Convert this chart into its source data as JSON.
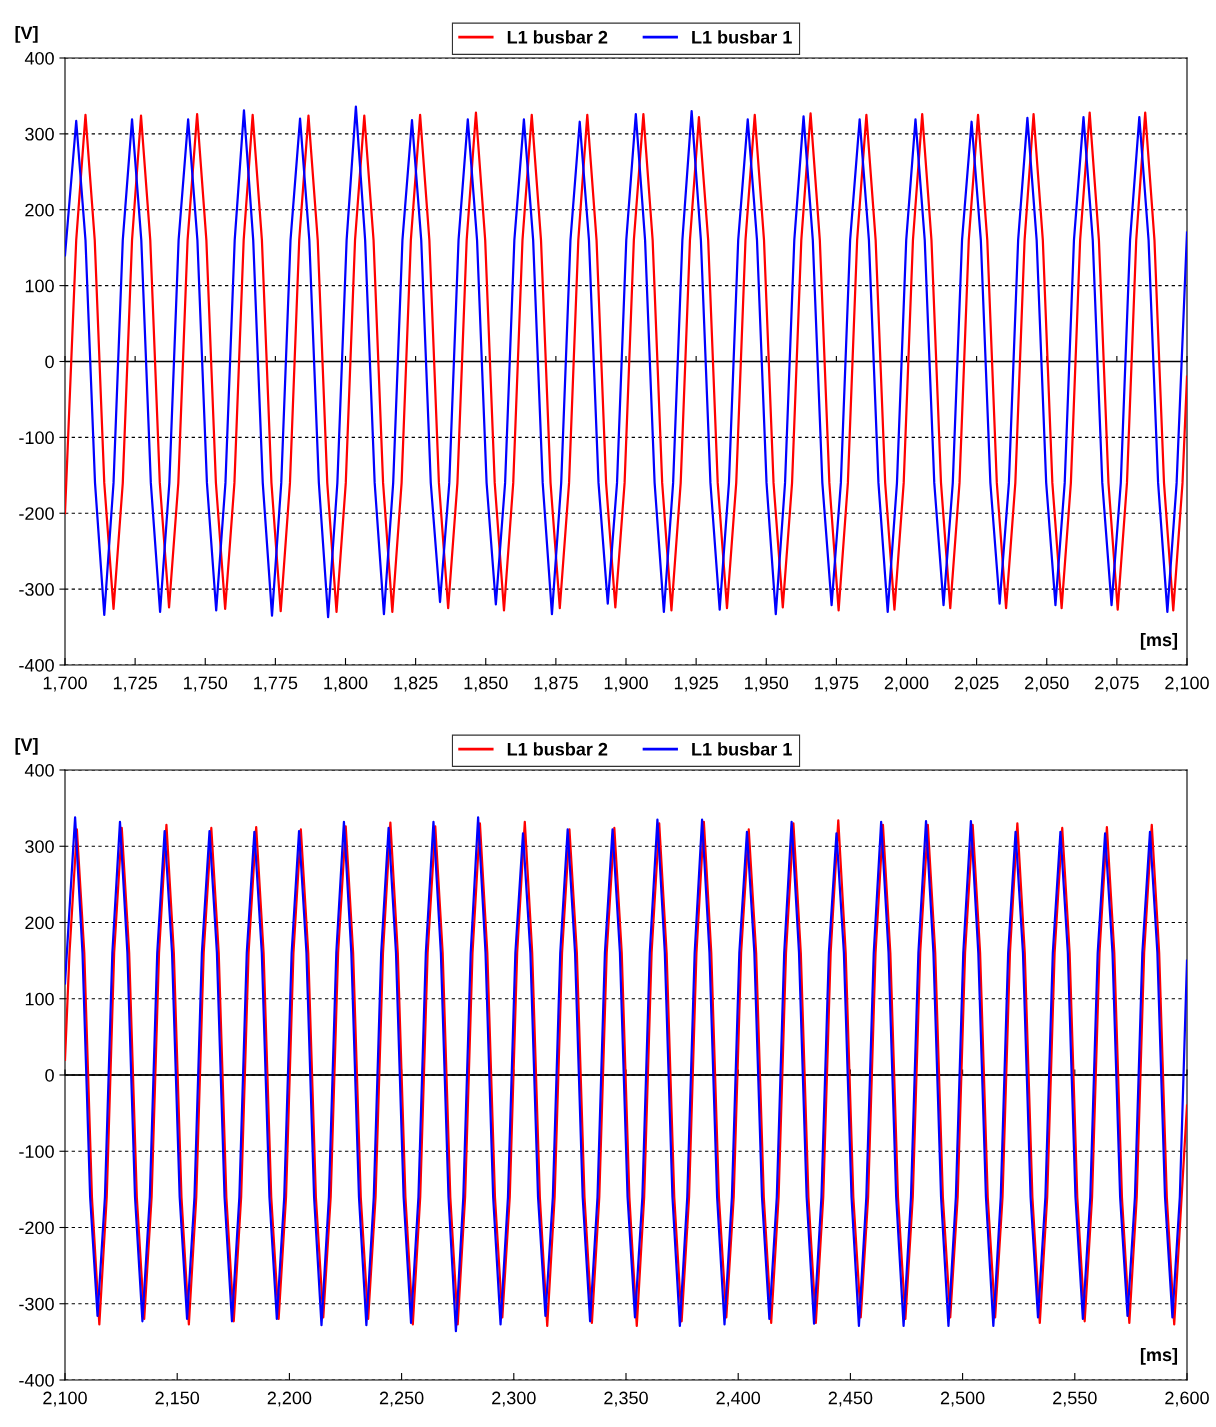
{
  "chart_data": [
    {
      "type": "line",
      "xlabel": "[ms]",
      "ylabel": "[V]",
      "legend": "top",
      "grid": "y",
      "line_style": "solid",
      "marker": "none",
      "xlim": [
        1700,
        2100
      ],
      "ylim": [
        -400,
        400
      ],
      "xticks": [
        {
          "value": 1700,
          "label": "1,700"
        },
        {
          "value": 1725,
          "label": "1,725"
        },
        {
          "value": 1750,
          "label": "1,750"
        },
        {
          "value": 1775,
          "label": "1,775"
        },
        {
          "value": 1800,
          "label": "1,800"
        },
        {
          "value": 1825,
          "label": "1,825"
        },
        {
          "value": 1850,
          "label": "1,850"
        },
        {
          "value": 1875,
          "label": "1,875"
        },
        {
          "value": 1900,
          "label": "1,900"
        },
        {
          "value": 1925,
          "label": "1,925"
        },
        {
          "value": 1950,
          "label": "1,950"
        },
        {
          "value": 1975,
          "label": "1,975"
        },
        {
          "value": 2000,
          "label": "2,000"
        },
        {
          "value": 2025,
          "label": "2,025"
        },
        {
          "value": 2050,
          "label": "2,050"
        },
        {
          "value": 2075,
          "label": "2,075"
        },
        {
          "value": 2100,
          "label": "2,100"
        }
      ],
      "yticks": [
        -400,
        -300,
        -200,
        -100,
        0,
        100,
        200,
        300,
        400
      ],
      "ref_lines": [
        {
          "axis": "y",
          "value": 0,
          "color": "#000000",
          "line_style": "solid"
        }
      ],
      "series": [
        {
          "name": "L1 busbar 2",
          "color": "#ff0000",
          "x": [
            1700,
            1704.0,
            1707.3,
            1710.6,
            1714.0,
            1717.3,
            1720.6,
            1723.9,
            1727.1,
            1730.4,
            1733.8,
            1737.1,
            1740.4,
            1743.7,
            1747.1,
            1750.4,
            1753.8,
            1757.1,
            1760.4,
            1763.7,
            1766.9,
            1770.2,
            1773.6,
            1776.9,
            1780.2,
            1783.5,
            1786.8,
            1790.1,
            1793.5,
            1796.8,
            1800.1,
            1803.4,
            1806.7,
            1810.0,
            1813.4,
            1816.7,
            1820.0,
            1823.3,
            1826.6,
            1829.9,
            1833.3,
            1836.6,
            1839.9,
            1843.2,
            1846.5,
            1849.8,
            1853.2,
            1856.5,
            1859.8,
            1863.1,
            1866.4,
            1869.7,
            1873.1,
            1876.4,
            1879.7,
            1883.0,
            1886.2,
            1889.5,
            1892.9,
            1896.2,
            1899.5,
            1902.8,
            1906.2,
            1909.5,
            1912.9,
            1916.2,
            1919.5,
            1922.8,
            1926.0,
            1929.3,
            1932.7,
            1936.0,
            1939.3,
            1942.6,
            1945.9,
            1949.2,
            1952.6,
            1955.9,
            1959.2,
            1962.5,
            1965.8,
            1969.1,
            1972.5,
            1975.8,
            1979.1,
            1982.4,
            1985.7,
            1989.0,
            1992.4,
            1995.7,
            1999.0,
            2002.3,
            2005.6,
            2008.9,
            2012.3,
            2015.6,
            2018.9,
            2022.2,
            2025.5,
            2028.8,
            2032.2,
            2035.5,
            2038.8,
            2042.1,
            2045.3,
            2048.6,
            2052.0,
            2055.3,
            2058.6,
            2061.9,
            2065.3,
            2068.6,
            2072.0,
            2075.3,
            2078.6,
            2081.9,
            2085.1,
            2088.4,
            2091.8,
            2095.1,
            2098.4,
            2100
          ],
          "values": [
            -200,
            160,
            325,
            160,
            -160,
            -326,
            -160,
            160,
            324,
            160,
            -160,
            -324,
            -160,
            160,
            326,
            160,
            -160,
            -326,
            -160,
            160,
            325,
            160,
            -160,
            -329,
            -160,
            160,
            324,
            160,
            -160,
            -330,
            -160,
            160,
            324,
            160,
            -160,
            -330,
            -160,
            160,
            325,
            160,
            -160,
            -325,
            -160,
            160,
            328,
            160,
            -160,
            -328,
            -160,
            160,
            325,
            160,
            -160,
            -325,
            -160,
            160,
            325,
            160,
            -160,
            -324,
            -160,
            160,
            326,
            160,
            -160,
            -328,
            -160,
            160,
            322,
            160,
            -160,
            -325,
            -160,
            160,
            325,
            160,
            -160,
            -324,
            -160,
            160,
            327,
            160,
            -160,
            -328,
            -160,
            160,
            325,
            160,
            -160,
            -327,
            -160,
            160,
            326,
            160,
            -160,
            -325,
            -160,
            160,
            325,
            160,
            -160,
            -325,
            -160,
            160,
            326,
            160,
            -160,
            -325,
            -160,
            160,
            328,
            160,
            -160,
            -327,
            -160,
            160,
            328,
            160,
            -160,
            -328,
            -160,
            -20
          ]
        },
        {
          "name": "L1 busbar 1",
          "color": "#0000ff",
          "x": [
            1700,
            1704.0,
            1707.3,
            1710.7,
            1714.0,
            1717.3,
            1720.6,
            1723.9,
            1727.2,
            1730.6,
            1733.9,
            1737.2,
            1740.5,
            1743.9,
            1747.2,
            1750.6,
            1753.9,
            1757.2,
            1760.5,
            1763.8,
            1767.1,
            1770.5,
            1773.8,
            1777.1,
            1780.4,
            1783.8,
            1787.1,
            1790.5,
            1793.8,
            1797.1,
            1800.4,
            1803.7,
            1807.0,
            1810.4,
            1813.7,
            1817.0,
            1820.3,
            1823.7,
            1827.0,
            1830.4,
            1833.7,
            1837.0,
            1840.3,
            1843.6,
            1846.9,
            1850.3,
            1853.6,
            1856.9,
            1860.2,
            1863.6,
            1866.9,
            1870.3,
            1873.6,
            1876.9,
            1880.2,
            1883.5,
            1886.8,
            1890.2,
            1893.5,
            1896.8,
            1900.1,
            1903.5,
            1906.8,
            1910.2,
            1913.5,
            1916.8,
            1920.1,
            1923.4,
            1926.7,
            1930.1,
            1933.4,
            1936.7,
            1940.0,
            1943.4,
            1946.7,
            1950.1,
            1953.4,
            1956.7,
            1960.0,
            1963.3,
            1966.6,
            1970.0,
            1973.3,
            1976.6,
            1979.9,
            1983.3,
            1986.6,
            1990.0,
            1993.3,
            1996.6,
            1999.9,
            2003.2,
            2006.5,
            2009.9,
            2013.2,
            2016.5,
            2019.8,
            2023.2,
            2026.5,
            2029.9,
            2033.2,
            2036.5,
            2039.8,
            2043.1,
            2046.4,
            2049.8,
            2053.1,
            2056.4,
            2059.7,
            2063.1,
            2066.4,
            2069.8,
            2073.1,
            2076.4,
            2079.7,
            2083.0,
            2086.3,
            2089.7,
            2093.0,
            2096.3,
            2100
          ],
          "values": [
            140,
            317,
            160,
            -160,
            -334,
            -160,
            160,
            319,
            160,
            -160,
            -330,
            -160,
            160,
            319,
            160,
            -160,
            -328,
            -160,
            160,
            331,
            160,
            -160,
            -335,
            -160,
            160,
            320,
            160,
            -160,
            -337,
            -160,
            160,
            336,
            160,
            -160,
            -333,
            -160,
            160,
            318,
            160,
            -160,
            -317,
            -160,
            160,
            319,
            160,
            -160,
            -320,
            -160,
            160,
            319,
            160,
            -160,
            -333,
            -160,
            160,
            316,
            160,
            -160,
            -319,
            -160,
            160,
            326,
            160,
            -160,
            -330,
            -160,
            160,
            330,
            160,
            -160,
            -327,
            -160,
            160,
            319,
            160,
            -160,
            -333,
            -160,
            160,
            323,
            160,
            -160,
            -321,
            -160,
            160,
            319,
            160,
            -160,
            -330,
            -160,
            160,
            319,
            160,
            -160,
            -321,
            -160,
            160,
            316,
            160,
            -160,
            -319,
            -160,
            160,
            321,
            160,
            -160,
            -321,
            -160,
            160,
            322,
            160,
            -160,
            -321,
            -160,
            160,
            322,
            160,
            -160,
            -330,
            -160,
            170
          ]
        }
      ]
    },
    {
      "type": "line",
      "xlabel": "[ms]",
      "ylabel": "[V]",
      "legend": "top",
      "grid": "y",
      "line_style": "solid",
      "marker": "none",
      "xlim": [
        2100,
        2600
      ],
      "ylim": [
        -400,
        400
      ],
      "xticks": [
        {
          "value": 2100,
          "label": "2,100"
        },
        {
          "value": 2150,
          "label": "2,150"
        },
        {
          "value": 2200,
          "label": "2,200"
        },
        {
          "value": 2250,
          "label": "2,250"
        },
        {
          "value": 2300,
          "label": "2,300"
        },
        {
          "value": 2350,
          "label": "2,350"
        },
        {
          "value": 2400,
          "label": "2,400"
        },
        {
          "value": 2450,
          "label": "2,450"
        },
        {
          "value": 2500,
          "label": "2,500"
        },
        {
          "value": 2550,
          "label": "2,550"
        },
        {
          "value": 2600,
          "label": "2,600"
        }
      ],
      "yticks": [
        -400,
        -300,
        -200,
        -100,
        0,
        100,
        200,
        300,
        400
      ],
      "ref_lines": [
        {
          "axis": "y",
          "value": 0,
          "color": "#000000",
          "line_style": "solid"
        }
      ],
      "series": [
        {
          "name": "L1 busbar 2",
          "color": "#ff0000",
          "x": [
            2100,
            2102.0,
            2105.3,
            2108.6,
            2112.0,
            2115.3,
            2118.6,
            2121.9,
            2125.3,
            2128.6,
            2132.0,
            2135.3,
            2138.6,
            2141.9,
            2145.2,
            2148.5,
            2151.9,
            2155.2,
            2158.5,
            2161.8,
            2165.2,
            2168.5,
            2171.9,
            2175.2,
            2178.5,
            2181.8,
            2185.2,
            2188.5,
            2191.9,
            2195.2,
            2198.5,
            2201.8,
            2205.1,
            2208.4,
            2211.8,
            2215.1,
            2218.4,
            2221.7,
            2225.1,
            2228.4,
            2231.8,
            2235.1,
            2238.4,
            2241.7,
            2245.0,
            2248.3,
            2251.7,
            2255.0,
            2258.3,
            2261.6,
            2265.0,
            2268.3,
            2271.7,
            2275.0,
            2278.3,
            2281.6,
            2284.9,
            2288.2,
            2291.6,
            2294.9,
            2298.2,
            2301.5,
            2304.9,
            2308.2,
            2311.6,
            2314.9,
            2318.2,
            2321.5,
            2324.8,
            2328.1,
            2331.5,
            2334.8,
            2338.1,
            2341.4,
            2344.8,
            2348.1,
            2351.5,
            2354.8,
            2358.1,
            2361.4,
            2364.8,
            2368.1,
            2371.5,
            2374.8,
            2378.1,
            2381.4,
            2384.7,
            2388.0,
            2391.4,
            2394.7,
            2398.0,
            2401.3,
            2404.7,
            2408.0,
            2411.4,
            2414.7,
            2418.0,
            2421.3,
            2424.6,
            2427.9,
            2431.3,
            2434.6,
            2437.9,
            2441.2,
            2444.6,
            2447.9,
            2451.3,
            2454.6,
            2457.9,
            2461.2,
            2464.5,
            2467.8,
            2471.2,
            2474.5,
            2477.8,
            2481.1,
            2484.5,
            2487.8,
            2491.2,
            2494.5,
            2497.8,
            2501.1,
            2504.5,
            2507.8,
            2511.2,
            2514.5,
            2517.8,
            2521.1,
            2524.4,
            2527.7,
            2531.1,
            2534.4,
            2537.7,
            2541.0,
            2544.4,
            2547.7,
            2551.1,
            2554.4,
            2557.7,
            2561.0,
            2564.3,
            2567.6,
            2571.0,
            2574.3,
            2577.6,
            2580.9,
            2584.3,
            2587.6,
            2591.0,
            2594.3,
            2597.6,
            2600
          ],
          "values": [
            20,
            160,
            322,
            160,
            -160,
            -327,
            -160,
            160,
            324,
            160,
            -160,
            -320,
            -160,
            160,
            328,
            160,
            -160,
            -327,
            -160,
            160,
            324,
            160,
            -160,
            -323,
            -160,
            160,
            325,
            160,
            -160,
            -320,
            -160,
            160,
            322,
            160,
            -160,
            -318,
            -160,
            160,
            326,
            160,
            -160,
            -320,
            -160,
            160,
            331,
            160,
            -160,
            -327,
            -160,
            160,
            326,
            160,
            -160,
            -327,
            -160,
            160,
            330,
            160,
            -160,
            -318,
            -160,
            160,
            332,
            160,
            -160,
            -329,
            -160,
            160,
            322,
            160,
            -160,
            -325,
            -160,
            160,
            324,
            160,
            -160,
            -329,
            -160,
            160,
            330,
            160,
            -160,
            -323,
            -160,
            160,
            332,
            160,
            -160,
            -318,
            -160,
            160,
            322,
            160,
            -160,
            -325,
            -160,
            160,
            330,
            160,
            -160,
            -325,
            -160,
            160,
            334,
            160,
            -160,
            -318,
            -160,
            160,
            328,
            160,
            -160,
            -320,
            -160,
            160,
            328,
            160,
            -160,
            -318,
            -160,
            160,
            328,
            160,
            -160,
            -318,
            -160,
            160,
            330,
            160,
            -160,
            -325,
            -160,
            160,
            324,
            160,
            -160,
            -323,
            -160,
            160,
            325,
            160,
            -160,
            -325,
            -160,
            160,
            328,
            160,
            -160,
            -327,
            -160,
            -40
          ]
        },
        {
          "name": "L1 busbar 1",
          "color": "#0000ff",
          "x": [
            2100,
            2104.5,
            2107.8,
            2111.2,
            2114.5,
            2117.8,
            2121.1,
            2124.5,
            2127.8,
            2131.2,
            2134.5,
            2137.8,
            2141.1,
            2144.4,
            2147.7,
            2151.1,
            2154.4,
            2157.7,
            2161.0,
            2164.4,
            2167.7,
            2171.1,
            2174.4,
            2177.7,
            2181.0,
            2184.4,
            2187.7,
            2191.1,
            2194.4,
            2197.7,
            2201.0,
            2204.3,
            2207.6,
            2211.0,
            2214.3,
            2217.6,
            2220.9,
            2224.3,
            2227.6,
            2231.0,
            2234.3,
            2237.6,
            2240.9,
            2244.2,
            2247.5,
            2250.9,
            2254.2,
            2257.5,
            2260.8,
            2264.2,
            2267.5,
            2270.9,
            2274.2,
            2277.5,
            2280.8,
            2284.1,
            2287.4,
            2290.8,
            2294.1,
            2297.4,
            2300.7,
            2304.1,
            2307.4,
            2310.8,
            2314.1,
            2317.4,
            2320.7,
            2324.0,
            2327.3,
            2330.7,
            2334.0,
            2337.3,
            2340.6,
            2344.0,
            2347.3,
            2350.7,
            2354.0,
            2357.3,
            2360.6,
            2364.0,
            2367.3,
            2370.7,
            2374.0,
            2377.3,
            2380.6,
            2383.9,
            2387.2,
            2390.6,
            2393.9,
            2397.2,
            2400.5,
            2403.9,
            2407.2,
            2410.6,
            2413.9,
            2417.2,
            2420.5,
            2423.8,
            2427.1,
            2430.5,
            2433.8,
            2437.1,
            2440.4,
            2443.8,
            2447.1,
            2450.5,
            2453.8,
            2457.1,
            2460.4,
            2463.7,
            2467.0,
            2470.4,
            2473.7,
            2477.0,
            2480.3,
            2483.7,
            2487.0,
            2490.4,
            2493.7,
            2497.0,
            2500.3,
            2503.7,
            2507.0,
            2510.4,
            2513.7,
            2517.0,
            2520.3,
            2523.6,
            2526.9,
            2530.3,
            2533.6,
            2536.9,
            2540.2,
            2543.6,
            2546.9,
            2550.3,
            2553.6,
            2556.9,
            2560.2,
            2563.5,
            2566.8,
            2570.2,
            2573.5,
            2576.8,
            2580.1,
            2583.5,
            2586.8,
            2590.2,
            2593.5,
            2596.8,
            2600
          ],
          "values": [
            120,
            338,
            160,
            -160,
            -316,
            -160,
            160,
            332,
            160,
            -160,
            -323,
            -160,
            160,
            320,
            160,
            -160,
            -320,
            -160,
            160,
            320,
            160,
            -160,
            -323,
            -160,
            160,
            319,
            160,
            -160,
            -320,
            -160,
            160,
            320,
            160,
            -160,
            -328,
            -160,
            160,
            332,
            160,
            -160,
            -328,
            -160,
            160,
            324,
            160,
            -160,
            -325,
            -160,
            160,
            332,
            160,
            -160,
            -336,
            -160,
            160,
            338,
            160,
            -160,
            -327,
            -160,
            160,
            317,
            160,
            -160,
            -316,
            -160,
            160,
            322,
            160,
            -160,
            -323,
            -160,
            160,
            322,
            160,
            -160,
            -318,
            -160,
            160,
            335,
            160,
            -160,
            -329,
            -160,
            160,
            335,
            160,
            -160,
            -327,
            -160,
            160,
            319,
            160,
            -160,
            -320,
            -160,
            160,
            332,
            160,
            -160,
            -326,
            -160,
            160,
            317,
            160,
            -160,
            -329,
            -160,
            160,
            332,
            160,
            -160,
            -329,
            -160,
            160,
            333,
            160,
            -160,
            -329,
            -160,
            160,
            333,
            160,
            -160,
            -329,
            -160,
            160,
            319,
            160,
            -160,
            -318,
            -160,
            160,
            319,
            160,
            -160,
            -320,
            -160,
            160,
            317,
            160,
            -160,
            -316,
            -160,
            160,
            319,
            160,
            -160,
            -318,
            -160,
            150
          ]
        }
      ]
    }
  ]
}
